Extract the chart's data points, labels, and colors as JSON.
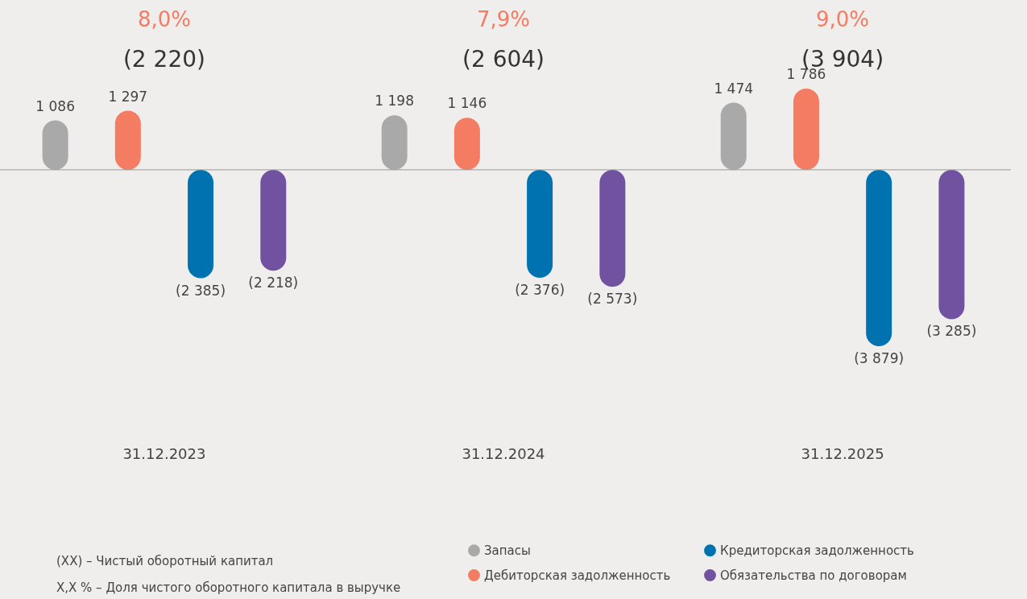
{
  "chart_data": {
    "type": "bar",
    "categories": [
      "31.12.2023",
      "31.12.2024",
      "31.12.2025"
    ],
    "series": [
      {
        "name": "Запасы",
        "color": "#aaa9a9",
        "values": [
          1086,
          1198,
          1474
        ],
        "value_labels": [
          "1 086",
          "1 198",
          "1 474"
        ]
      },
      {
        "name": "Дебиторская задолженность",
        "color": "#f47c62",
        "values": [
          1297,
          1146,
          1786
        ],
        "value_labels": [
          "1 297",
          "1 146",
          "1 786"
        ]
      },
      {
        "name": "Кредиторская задолженность",
        "color": "#0072b0",
        "values": [
          -2385,
          -2376,
          -3879
        ],
        "value_labels": [
          "(2 385)",
          "(2 376)",
          "(3 879)"
        ]
      },
      {
        "name": "Обязательства по договорам",
        "color": "#7152a0",
        "values": [
          -2218,
          -2573,
          -3285
        ],
        "value_labels": [
          "(2 218)",
          "(2 573)",
          "(3 285)"
        ]
      }
    ],
    "annotations": [
      "8,0%",
      "7,9%",
      "9,0%",
      "(2 220)",
      "(2 604)",
      "(3 904)",
      "(XX) – Чистый оборотный капитал",
      "X,X % – Доля чистого оборотного капитала в выручке"
    ],
    "legend": "bottom",
    "grid": false
  }
}
